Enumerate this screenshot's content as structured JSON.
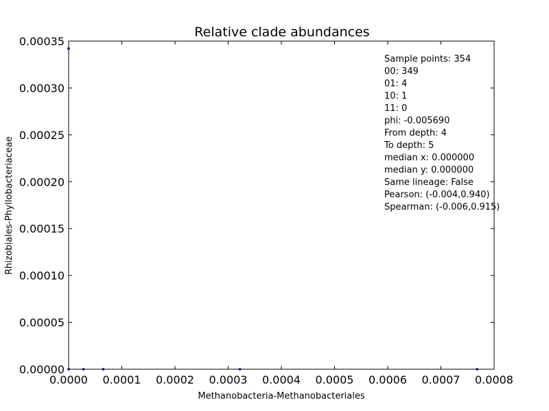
{
  "chart_data": {
    "type": "scatter",
    "title": "Relative clade abundances",
    "xlabel": "Methanobacteria-Methanobacteriales",
    "ylabel": "Rhizobiales-Phyllobacteriaceae",
    "xlim": [
      0,
      0.0008
    ],
    "ylim": [
      0,
      0.00035
    ],
    "x_ticks": [
      "0.0000",
      "0.0001",
      "0.0002",
      "0.0003",
      "0.0004",
      "0.0005",
      "0.0006",
      "0.0007",
      "0.0008"
    ],
    "y_ticks": [
      "0.00000",
      "0.00005",
      "0.00010",
      "0.00015",
      "0.00020",
      "0.00025",
      "0.00030",
      "0.00035"
    ],
    "points": [
      {
        "x": 0.0,
        "y": 0.000342
      },
      {
        "x": 0.0,
        "y": 0.0
      },
      {
        "x": 2.8e-05,
        "y": 0.0
      },
      {
        "x": 6.5e-05,
        "y": 0.0
      },
      {
        "x": 0.000322,
        "y": 0.0
      },
      {
        "x": 0.000768,
        "y": 0.0
      }
    ],
    "point_color": "#1f4fd1",
    "grid": false,
    "annotations": [
      "Sample points: 354",
      "00: 349",
      "01: 4",
      "10: 1",
      "11: 0",
      "phi: -0.005690",
      "From depth: 4",
      "To depth: 5",
      "median x: 0.000000",
      "median y: 0.000000",
      "Same lineage: False",
      "Pearson: (-0.004,0.940)",
      "Spearman: (-0.006,0.915)"
    ]
  }
}
